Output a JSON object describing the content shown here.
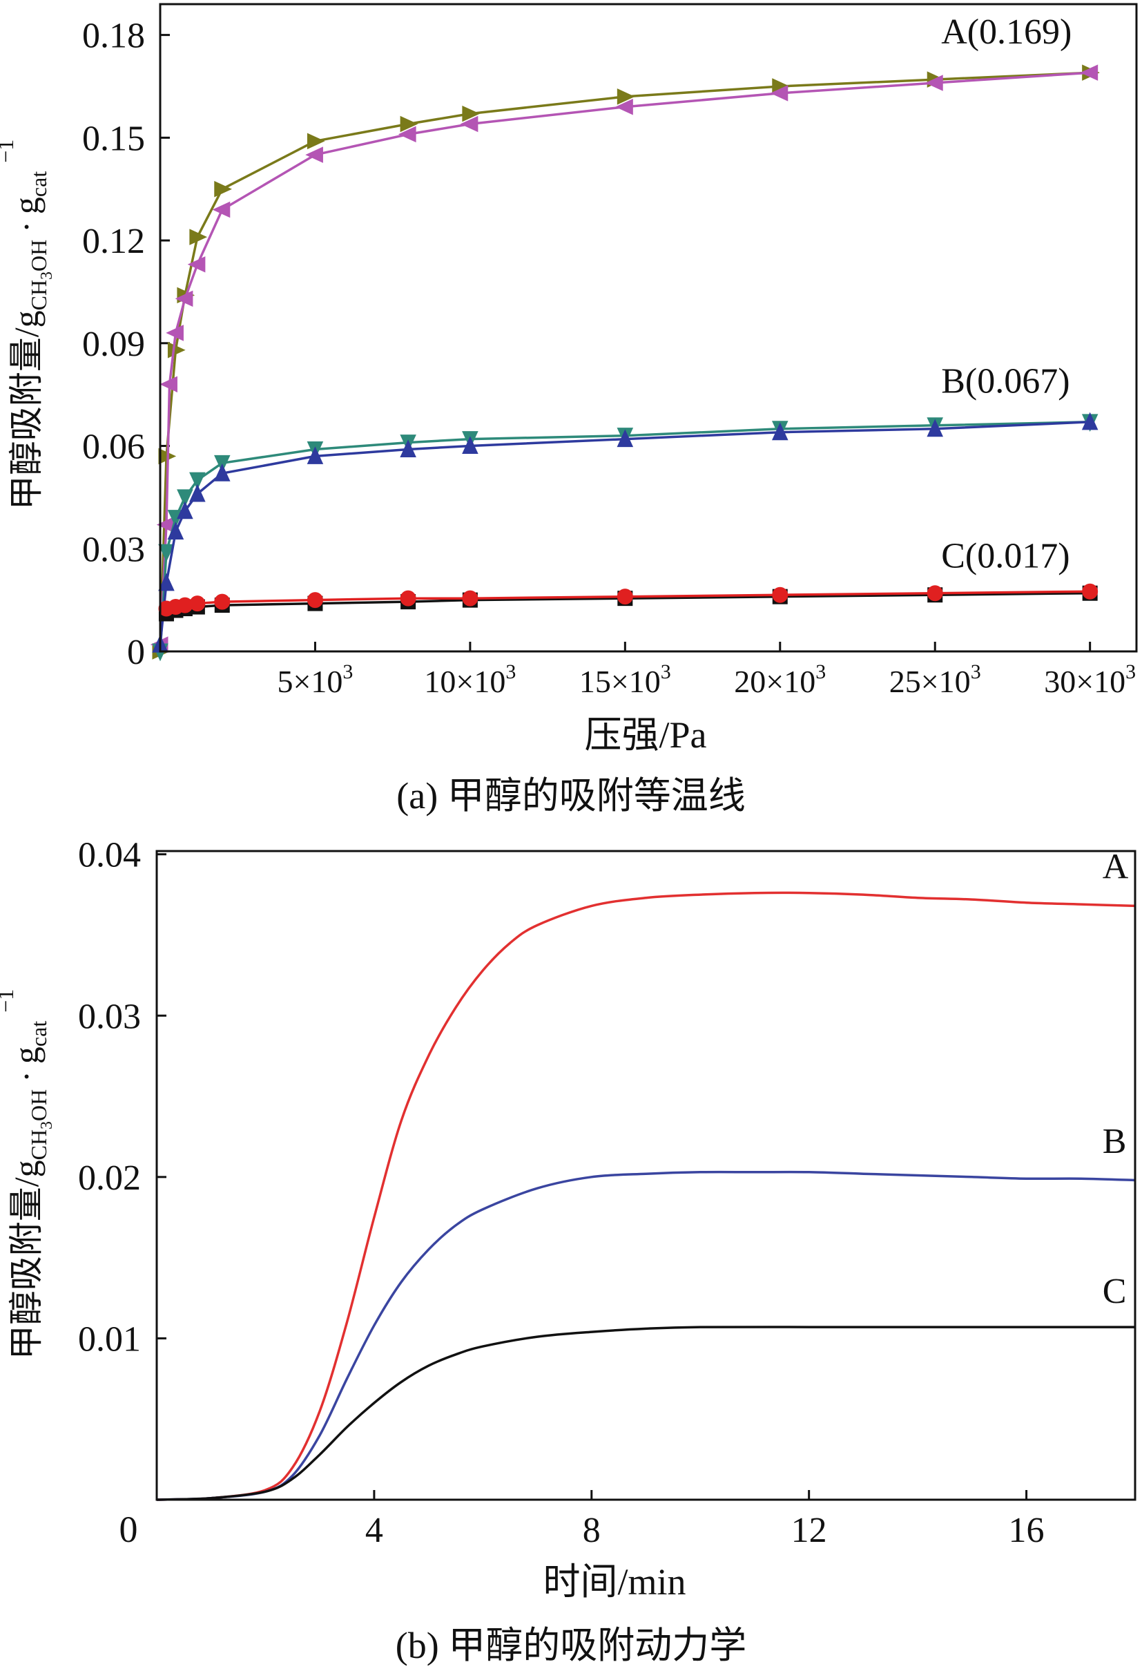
{
  "chart_data": [
    {
      "type": "line",
      "panel": "a",
      "caption": "(a) 甲醇的吸附等温线",
      "xlabel": "压强/Pa",
      "ylabel": {
        "base": "甲醇吸附量/g",
        "sub": "CH",
        "sub_num": "3",
        "sub_tail": "OH",
        "dot": "·",
        "g": "g",
        "g_sub": "cat",
        "sup": "−1"
      },
      "xlim": [
        0,
        31500
      ],
      "ylim": [
        0,
        0.189
      ],
      "yticks": [
        {
          "v": 0,
          "label": "0"
        },
        {
          "v": 0.03,
          "label": "0.03"
        },
        {
          "v": 0.06,
          "label": "0.06"
        },
        {
          "v": 0.09,
          "label": "0.09"
        },
        {
          "v": 0.12,
          "label": "0.12"
        },
        {
          "v": 0.15,
          "label": "0.15"
        },
        {
          "v": 0.18,
          "label": "0.18"
        }
      ],
      "xticks": [
        {
          "v": 5000,
          "label": "5×10",
          "sup": "3"
        },
        {
          "v": 10000,
          "label": "10×10",
          "sup": "3"
        },
        {
          "v": 15000,
          "label": "15×10",
          "sup": "3"
        },
        {
          "v": 20000,
          "label": "20×10",
          "sup": "3"
        },
        {
          "v": 25000,
          "label": "25×10",
          "sup": "3"
        },
        {
          "v": 30000,
          "label": "30×10",
          "sup": "3"
        }
      ],
      "annotations": [
        {
          "text": "A(0.169)",
          "x": 25200,
          "y": 0.1775
        },
        {
          "text": "B(0.067)",
          "x": 25200,
          "y": 0.0755
        },
        {
          "text": "C(0.017)",
          "x": 25200,
          "y": 0.0245
        }
      ],
      "series": [
        {
          "name": "A-adsorption",
          "color": "#7a7a1a",
          "marker": "tri-right",
          "x": [
            0,
            200,
            500,
            800,
            1200,
            2000,
            5000,
            8000,
            10000,
            15000,
            20000,
            25000,
            30000
          ],
          "y": [
            0,
            0.057,
            0.088,
            0.104,
            0.121,
            0.135,
            0.149,
            0.154,
            0.157,
            0.162,
            0.165,
            0.167,
            0.169
          ]
        },
        {
          "name": "A-desorption",
          "color": "#b455b4",
          "marker": "tri-left",
          "x": [
            0,
            200,
            300,
            500,
            800,
            1200,
            2000,
            5000,
            8000,
            10000,
            15000,
            20000,
            25000,
            30000
          ],
          "y": [
            0.002,
            0.037,
            0.078,
            0.093,
            0.103,
            0.113,
            0.129,
            0.145,
            0.151,
            0.154,
            0.159,
            0.163,
            0.166,
            0.169
          ]
        },
        {
          "name": "B-adsorption",
          "color": "#2e8a7a",
          "marker": "tri-down",
          "x": [
            0,
            200,
            500,
            800,
            1200,
            2000,
            5000,
            8000,
            10000,
            15000,
            20000,
            25000,
            30000
          ],
          "y": [
            0,
            0.029,
            0.039,
            0.045,
            0.05,
            0.055,
            0.059,
            0.061,
            0.062,
            0.063,
            0.065,
            0.066,
            0.067
          ]
        },
        {
          "name": "B-desorption",
          "color": "#2e3a9e",
          "marker": "tri-up",
          "x": [
            0,
            200,
            500,
            800,
            1200,
            2000,
            5000,
            8000,
            10000,
            15000,
            20000,
            25000,
            30000
          ],
          "y": [
            0.002,
            0.02,
            0.035,
            0.041,
            0.046,
            0.052,
            0.057,
            0.059,
            0.06,
            0.062,
            0.064,
            0.065,
            0.067
          ]
        },
        {
          "name": "C-adsorption",
          "color": "#111111",
          "marker": "square",
          "x": [
            200,
            500,
            800,
            1200,
            2000,
            5000,
            8000,
            10000,
            15000,
            20000,
            25000,
            30000
          ],
          "y": [
            0.011,
            0.012,
            0.0125,
            0.013,
            0.0135,
            0.014,
            0.0145,
            0.015,
            0.0155,
            0.016,
            0.0165,
            0.017
          ]
        },
        {
          "name": "C-desorption",
          "color": "#e02020",
          "marker": "circle",
          "x": [
            200,
            500,
            800,
            1200,
            2000,
            5000,
            8000,
            10000,
            15000,
            20000,
            25000,
            30000
          ],
          "y": [
            0.0125,
            0.013,
            0.0135,
            0.014,
            0.0145,
            0.015,
            0.0155,
            0.0155,
            0.016,
            0.0165,
            0.017,
            0.0175
          ]
        }
      ]
    },
    {
      "type": "line",
      "panel": "b",
      "caption": "(b) 甲醇的吸附动力学",
      "xlabel": "时间/min",
      "ylabel": {
        "base": "甲醇吸附量/g",
        "sub": "CH",
        "sub_num": "3",
        "sub_tail": "OH",
        "dot": "·",
        "g": "g",
        "g_sub": "cat",
        "sup": "−1"
      },
      "xlim": [
        0,
        18
      ],
      "ylim": [
        0,
        0.0402
      ],
      "yticks": [
        {
          "v": 0.01,
          "label": "0.01"
        },
        {
          "v": 0.02,
          "label": "0.02"
        },
        {
          "v": 0.03,
          "label": "0.03"
        },
        {
          "v": 0.04,
          "label": "0.04"
        }
      ],
      "xticks": [
        {
          "v": 4,
          "label": "4"
        },
        {
          "v": 8,
          "label": "8"
        },
        {
          "v": 12,
          "label": "12"
        },
        {
          "v": 16,
          "label": "16"
        }
      ],
      "origin_label": "0",
      "annotations": [
        {
          "text": "A",
          "x": 17.4,
          "y": 0.0385
        },
        {
          "text": "B",
          "x": 17.4,
          "y": 0.0215
        },
        {
          "text": "C",
          "x": 17.4,
          "y": 0.0122
        }
      ],
      "series": [
        {
          "name": "A",
          "color": "#e23030",
          "x": [
            0,
            1,
            2,
            2.5,
            3,
            3.5,
            4,
            4.5,
            5,
            5.5,
            6,
            6.5,
            7,
            8,
            9,
            10,
            11,
            12,
            13,
            14,
            15,
            16,
            17,
            18
          ],
          "y": [
            0,
            0.0001,
            0.0006,
            0.002,
            0.0055,
            0.011,
            0.0175,
            0.0235,
            0.0275,
            0.0305,
            0.0328,
            0.0345,
            0.0356,
            0.0368,
            0.0373,
            0.0375,
            0.0376,
            0.0376,
            0.0375,
            0.0373,
            0.0372,
            0.037,
            0.0369,
            0.0368
          ]
        },
        {
          "name": "B",
          "color": "#3a45a0",
          "x": [
            0,
            1,
            2,
            2.5,
            3,
            3.5,
            4,
            4.5,
            5,
            5.5,
            6,
            7,
            8,
            9,
            10,
            11,
            12,
            13,
            14,
            15,
            16,
            17,
            18
          ],
          "y": [
            0,
            0.0001,
            0.0005,
            0.0015,
            0.004,
            0.0075,
            0.0108,
            0.0135,
            0.0155,
            0.017,
            0.018,
            0.0193,
            0.02,
            0.0202,
            0.0203,
            0.0203,
            0.0203,
            0.0202,
            0.0201,
            0.02,
            0.0199,
            0.0199,
            0.0198
          ]
        },
        {
          "name": "C",
          "color": "#111111",
          "x": [
            0,
            1,
            2,
            2.5,
            3,
            3.5,
            4,
            4.5,
            5,
            5.5,
            6,
            7,
            8,
            9,
            10,
            12,
            14,
            16,
            18
          ],
          "y": [
            0,
            0.0001,
            0.0005,
            0.0013,
            0.0028,
            0.0045,
            0.006,
            0.0073,
            0.0083,
            0.009,
            0.0095,
            0.0101,
            0.0104,
            0.0106,
            0.0107,
            0.0107,
            0.0107,
            0.0107,
            0.0107
          ]
        }
      ]
    }
  ]
}
